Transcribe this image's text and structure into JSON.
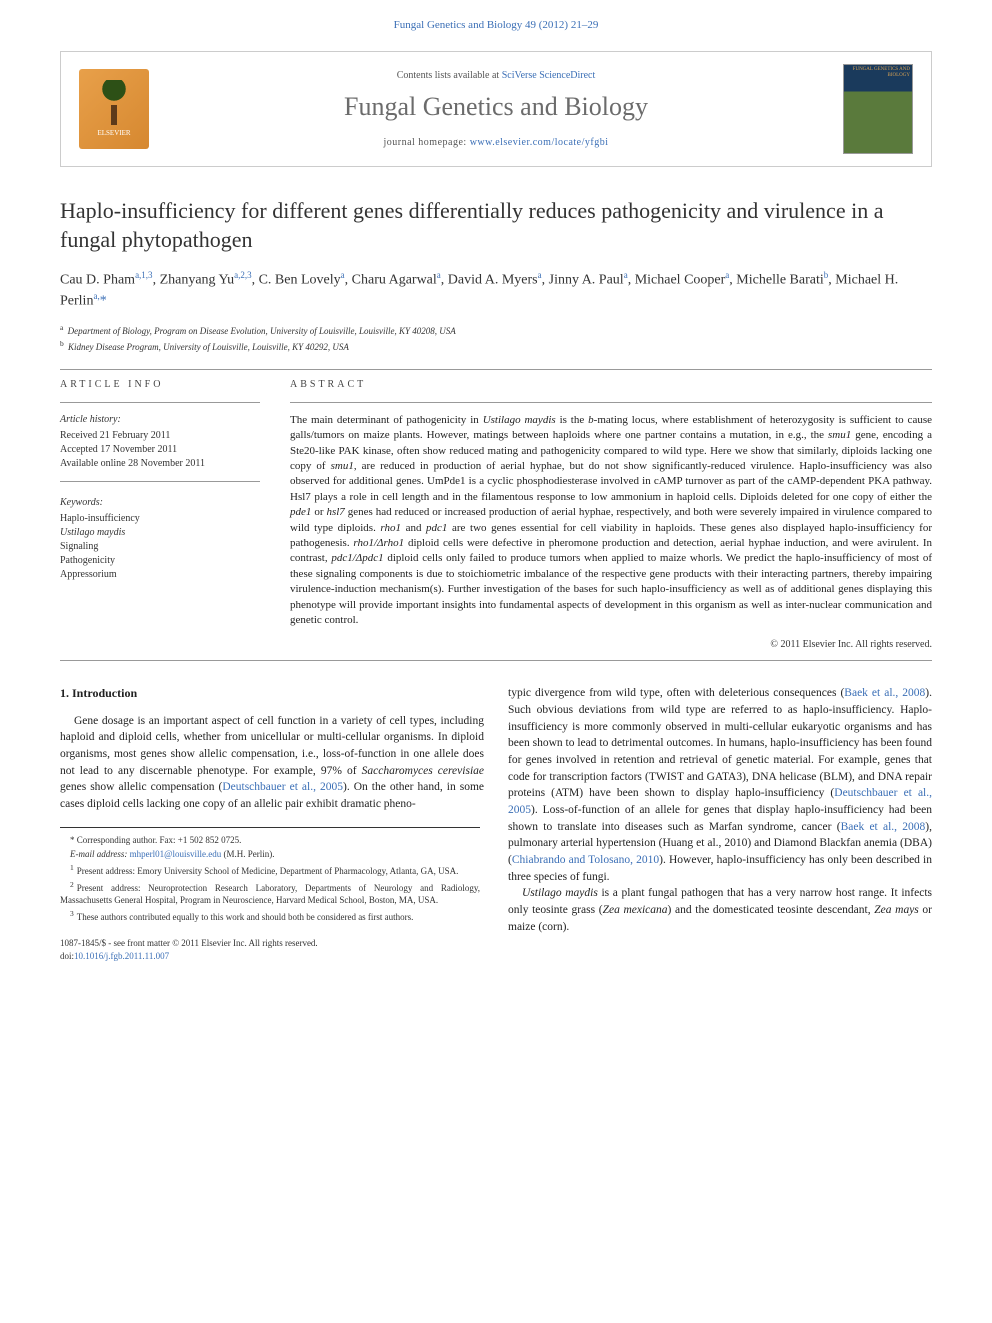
{
  "header": {
    "citation": "Fungal Genetics and Biology 49 (2012) 21–29",
    "contents_line_prefix": "Contents lists available at ",
    "contents_link": "SciVerse ScienceDirect",
    "journal_name": "Fungal Genetics and Biology",
    "homepage_prefix": "journal homepage: ",
    "homepage_url": "www.elsevier.com/locate/yfgbi",
    "elsevier_label": "ELSEVIER",
    "cover_title": "FUNGAL GENETICS AND BIOLOGY"
  },
  "article": {
    "title": "Haplo-insufficiency for different genes differentially reduces pathogenicity and virulence in a fungal phytopathogen",
    "authors_html": "Cau D. Pham<sup>a,1,3</sup>, Zhanyang Yu<sup>a,2,3</sup>, C. Ben Lovely<sup>a</sup>, Charu Agarwal<sup>a</sup>, David A. Myers<sup>a</sup>, Jinny A. Paul<sup>a</sup>, Michael Cooper<sup>a</sup>, Michelle Barati<sup>b</sup>, Michael H. Perlin<sup>a,</sup><span class='corr'>*</span>",
    "affiliations": [
      {
        "sup": "a",
        "text": "Department of Biology, Program on Disease Evolution, University of Louisville, Louisville, KY 40208, USA"
      },
      {
        "sup": "b",
        "text": "Kidney Disease Program, University of Louisville, Louisville, KY 40292, USA"
      }
    ]
  },
  "info": {
    "section_label": "ARTICLE INFO",
    "history_label": "Article history:",
    "history": [
      "Received 21 February 2011",
      "Accepted 17 November 2011",
      "Available online 28 November 2011"
    ],
    "keywords_label": "Keywords:",
    "keywords": [
      {
        "text": "Haplo-insufficiency",
        "ital": false
      },
      {
        "text": "Ustilago maydis",
        "ital": true
      },
      {
        "text": "Signaling",
        "ital": false
      },
      {
        "text": "Pathogenicity",
        "ital": false
      },
      {
        "text": "Appressorium",
        "ital": false
      }
    ]
  },
  "abstract": {
    "section_label": "ABSTRACT",
    "text_parts": [
      {
        "t": "The main determinant of pathogenicity in ",
        "ital": false
      },
      {
        "t": "Ustilago maydis",
        "ital": true
      },
      {
        "t": " is the ",
        "ital": false
      },
      {
        "t": "b",
        "ital": true
      },
      {
        "t": "-mating locus, where establishment of heterozygosity is sufficient to cause galls/tumors on maize plants. However, matings between haploids where one partner contains a mutation, in e.g., the ",
        "ital": false
      },
      {
        "t": "smu1",
        "ital": true
      },
      {
        "t": " gene, encoding a Ste20-like PAK kinase, often show reduced mating and pathogenicity compared to wild type. Here we show that similarly, diploids lacking one copy of ",
        "ital": false
      },
      {
        "t": "smu1",
        "ital": true
      },
      {
        "t": ", are reduced in production of aerial hyphae, but do not show significantly-reduced virulence. Haplo-insufficiency was also observed for additional genes. UmPde1 is a cyclic phosphodiesterase involved in cAMP turnover as part of the cAMP-dependent PKA pathway. Hsl7 plays a role in cell length and in the filamentous response to low ammonium in haploid cells. Diploids deleted for one copy of either the ",
        "ital": false
      },
      {
        "t": "pde1",
        "ital": true
      },
      {
        "t": " or ",
        "ital": false
      },
      {
        "t": "hsl7",
        "ital": true
      },
      {
        "t": " genes had reduced or increased production of aerial hyphae, respectively, and both were severely impaired in virulence compared to wild type diploids. ",
        "ital": false
      },
      {
        "t": "rho1",
        "ital": true
      },
      {
        "t": " and ",
        "ital": false
      },
      {
        "t": "pdc1",
        "ital": true
      },
      {
        "t": " are two genes essential for cell viability in haploids. These genes also displayed haplo-insufficiency for pathogenesis. ",
        "ital": false
      },
      {
        "t": "rho1/Δrho1",
        "ital": true
      },
      {
        "t": " diploid cells were defective in pheromone production and detection, aerial hyphae induction, and were avirulent. In contrast, ",
        "ital": false
      },
      {
        "t": "pdc1/Δpdc1",
        "ital": true
      },
      {
        "t": " diploid cells only failed to produce tumors when applied to maize whorls. We predict the haplo-insufficiency of most of these signaling components is due to stoichiometric imbalance of the respective gene products with their interacting partners, thereby impairing virulence-induction mechanism(s). Further investigation of the bases for such haplo-insufficiency as well as of additional genes displaying this phenotype will provide important insights into fundamental aspects of development in this organism as well as inter-nuclear communication and genetic control.",
        "ital": false
      }
    ],
    "copyright": "© 2011 Elsevier Inc. All rights reserved."
  },
  "body": {
    "intro_heading": "1. Introduction",
    "col1_p1_parts": [
      {
        "t": "Gene dosage is an important aspect of cell function in a variety of cell types, including haploid and diploid cells, whether from unicellular or multi-cellular organisms. In diploid organisms, most genes show allelic compensation, i.e., loss-of-function in one allele does not lead to any discernable phenotype. For example, 97% of ",
        "ital": false
      },
      {
        "t": "Saccharomyces cerevisiae",
        "ital": true
      },
      {
        "t": " genes show allelic compensation (",
        "ital": false
      },
      {
        "t": "Deutschbauer et al., 2005",
        "cite": true
      },
      {
        "t": "). On the other hand, in some cases diploid cells lacking one copy of an allelic pair exhibit dramatic pheno-",
        "ital": false
      }
    ],
    "col2_p1_parts": [
      {
        "t": "typic divergence from wild type, often with deleterious consequences (",
        "ital": false
      },
      {
        "t": "Baek et al., 2008",
        "cite": true
      },
      {
        "t": "). Such obvious deviations from wild type are referred to as haplo-insufficiency. Haplo-insufficiency is more commonly observed in multi-cellular eukaryotic organisms and has been shown to lead to detrimental outcomes. In humans, haplo-insufficiency has been found for genes involved in retention and retrieval of genetic material. For example, genes that code for transcription factors (TWIST and GATA3), DNA helicase (BLM), and DNA repair proteins (ATM) have been shown to display haplo-insufficiency (",
        "ital": false
      },
      {
        "t": "Deutschbauer et al., 2005",
        "cite": true
      },
      {
        "t": "). Loss-of-function of an allele for genes that display haplo-insufficiency had been shown to translate into diseases such as Marfan syndrome, cancer (",
        "ital": false
      },
      {
        "t": "Baek et al., 2008",
        "cite": true
      },
      {
        "t": "), pulmonary arterial hypertension (Huang et al., 2010) and Diamond Blackfan anemia (DBA) (",
        "ital": false
      },
      {
        "t": "Chiabrando and Tolosano, 2010",
        "cite": true
      },
      {
        "t": "). However, haplo-insufficiency has only been described in three species of fungi.",
        "ital": false
      }
    ],
    "col2_p2_parts": [
      {
        "t": "Ustilago maydis",
        "ital": true
      },
      {
        "t": " is a plant fungal pathogen that has a very narrow host range. It infects only teosinte grass (",
        "ital": false
      },
      {
        "t": "Zea mexicana",
        "ital": true
      },
      {
        "t": ") and the domesticated teosinte descendant, ",
        "ital": false
      },
      {
        "t": "Zea mays",
        "ital": true
      },
      {
        "t": " or maize (corn).",
        "ital": false
      }
    ]
  },
  "footnotes": {
    "corr": "* Corresponding author. Fax: +1 502 852 0725.",
    "email_label": "E-mail address:",
    "email": "mhperl01@louisville.edu",
    "email_suffix": "(M.H. Perlin).",
    "fn1": "Present address: Emory University School of Medicine, Department of Pharmacology, Atlanta, GA, USA.",
    "fn2": "Present address: Neuroprotection Research Laboratory, Departments of Neurology and Radiology, Massachusetts General Hospital, Program in Neuroscience, Harvard Medical School, Boston, MA, USA.",
    "fn3": "These authors contributed equally to this work and should both be considered as first authors."
  },
  "bottom": {
    "issn_line": "1087-1845/$ - see front matter © 2011 Elsevier Inc. All rights reserved.",
    "doi_prefix": "doi:",
    "doi": "10.1016/j.fgb.2011.11.007"
  },
  "colors": {
    "link_blue": "#3b6fb6",
    "text": "#222222",
    "rule": "#999999"
  }
}
